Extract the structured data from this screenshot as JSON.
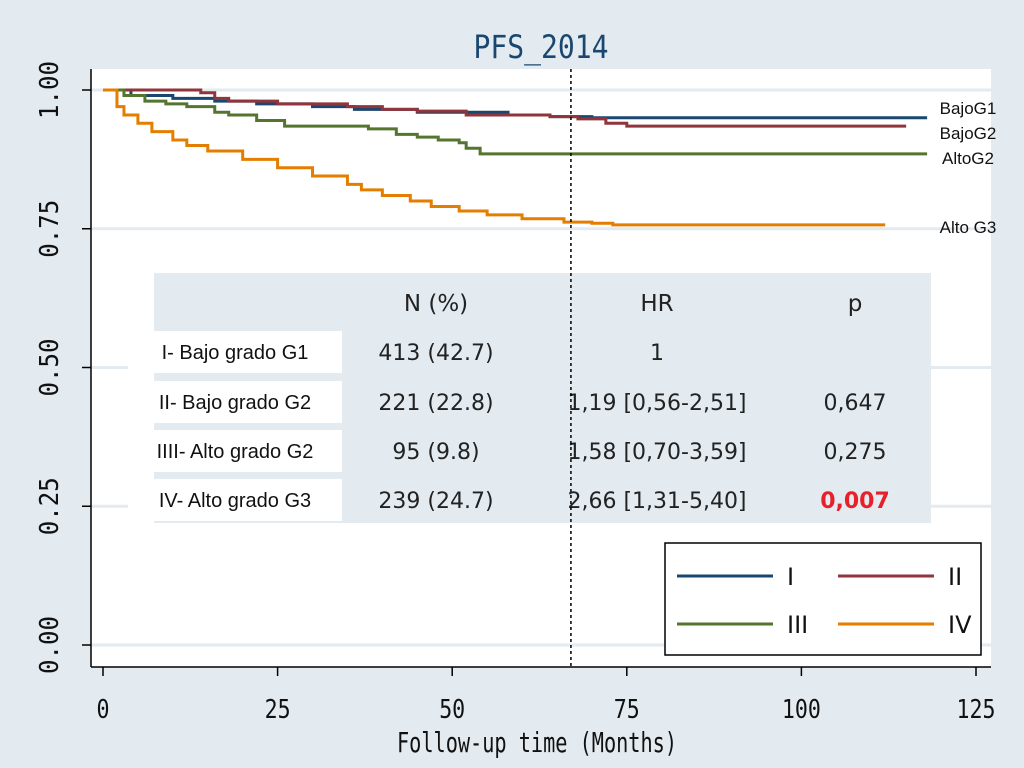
{
  "chart_data": {
    "type": "line",
    "title": "PFS_2014",
    "xlabel": "Follow-up time (Months)",
    "ylabel": "",
    "xlim": [
      0,
      125
    ],
    "ylim": [
      0,
      1
    ],
    "x_ticks": [
      "0",
      "25",
      "50",
      "75",
      "100",
      "125"
    ],
    "y_ticks": [
      "0.00",
      "0.25",
      "0.50",
      "0.75",
      "1.00"
    ],
    "grid": true,
    "reference_line_x": 67,
    "series": [
      {
        "name": "I",
        "end_label": "BajoG1",
        "color": "#1a476f",
        "points": [
          [
            0,
            1.0
          ],
          [
            2,
            1.0
          ],
          [
            4,
            0.99
          ],
          [
            10,
            0.985
          ],
          [
            16,
            0.98
          ],
          [
            22,
            0.975
          ],
          [
            30,
            0.97
          ],
          [
            36,
            0.965
          ],
          [
            45,
            0.96
          ],
          [
            52,
            0.96
          ],
          [
            58,
            0.955
          ],
          [
            64,
            0.952
          ],
          [
            70,
            0.95
          ],
          [
            74,
            0.95
          ],
          [
            90,
            0.95
          ],
          [
            110,
            0.95
          ],
          [
            118,
            0.95
          ]
        ]
      },
      {
        "name": "II",
        "end_label": "BajoG2",
        "color": "#90353b",
        "points": [
          [
            0,
            1.0
          ],
          [
            4,
            1.0
          ],
          [
            10,
            1.0
          ],
          [
            14,
            0.995
          ],
          [
            16,
            0.985
          ],
          [
            18,
            0.98
          ],
          [
            25,
            0.975
          ],
          [
            35,
            0.97
          ],
          [
            40,
            0.965
          ],
          [
            45,
            0.962
          ],
          [
            52,
            0.955
          ],
          [
            58,
            0.955
          ],
          [
            64,
            0.952
          ],
          [
            68,
            0.948
          ],
          [
            72,
            0.94
          ],
          [
            75,
            0.935
          ],
          [
            90,
            0.935
          ],
          [
            110,
            0.935
          ],
          [
            115,
            0.935
          ]
        ]
      },
      {
        "name": "III",
        "end_label": "AltoG2",
        "color": "#55752f",
        "points": [
          [
            0,
            1.0
          ],
          [
            2,
            1.0
          ],
          [
            3,
            0.99
          ],
          [
            6,
            0.98
          ],
          [
            9,
            0.975
          ],
          [
            12,
            0.97
          ],
          [
            16,
            0.96
          ],
          [
            18,
            0.955
          ],
          [
            22,
            0.945
          ],
          [
            25,
            0.945
          ],
          [
            26,
            0.935
          ],
          [
            33,
            0.935
          ],
          [
            38,
            0.93
          ],
          [
            40,
            0.93
          ],
          [
            42,
            0.92
          ],
          [
            45,
            0.915
          ],
          [
            48,
            0.91
          ],
          [
            51,
            0.905
          ],
          [
            52,
            0.895
          ],
          [
            54,
            0.885
          ],
          [
            60,
            0.885
          ],
          [
            80,
            0.885
          ],
          [
            100,
            0.885
          ],
          [
            118,
            0.885
          ]
        ]
      },
      {
        "name": "IV",
        "end_label": "Alto G3",
        "color": "#e37e00",
        "points": [
          [
            0,
            1.0
          ],
          [
            1,
            1.0
          ],
          [
            2,
            0.97
          ],
          [
            3,
            0.955
          ],
          [
            5,
            0.94
          ],
          [
            7,
            0.925
          ],
          [
            10,
            0.91
          ],
          [
            12,
            0.9
          ],
          [
            15,
            0.89
          ],
          [
            20,
            0.875
          ],
          [
            25,
            0.86
          ],
          [
            30,
            0.845
          ],
          [
            35,
            0.83
          ],
          [
            37,
            0.82
          ],
          [
            40,
            0.81
          ],
          [
            44,
            0.8
          ],
          [
            47,
            0.79
          ],
          [
            51,
            0.782
          ],
          [
            55,
            0.775
          ],
          [
            60,
            0.768
          ],
          [
            66,
            0.762
          ],
          [
            70,
            0.76
          ],
          [
            73,
            0.757
          ],
          [
            80,
            0.757
          ],
          [
            100,
            0.757
          ],
          [
            112,
            0.757
          ]
        ]
      }
    ],
    "table": {
      "headers": [
        "N (%)",
        "HR",
        "p"
      ],
      "rows": [
        {
          "label": "I- Bajo grado G1",
          "n": "413 (42.7)",
          "hr": "1",
          "p": ""
        },
        {
          "label": "II- Bajo grado G2",
          "n": "221 (22.8)",
          "hr": "1,19 [0,56-2,51]",
          "p": "0,647"
        },
        {
          "label": "IIII- Alto grado G2",
          "n": "95 (9.8)",
          "hr": "1,58 [0,70-3,59]",
          "p": "0,275"
        },
        {
          "label": "IV- Alto grado G3",
          "n": "239 (24.7)",
          "hr": "2,66 [1,31-5,40]",
          "p": "0,007"
        }
      ],
      "highlight_color": "#e8202a"
    },
    "legend": {
      "position": "bottom-right",
      "entries": [
        "I",
        "II",
        "III",
        "IV"
      ]
    }
  }
}
